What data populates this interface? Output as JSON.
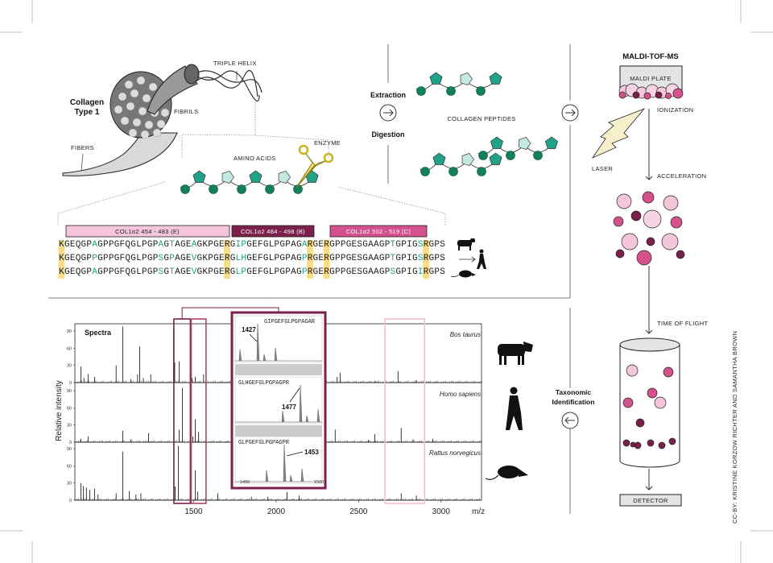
{
  "credit": "CC-BY: KRISTINE KORZOW RICHTER AND SAMANTHA BROWN",
  "colors": {
    "light_pink": "#f5c5db",
    "maroon": "#7b1f4b",
    "mid_pink": "#d3518c",
    "teal": "#1fa287",
    "light_teal": "#c4e8e2",
    "dark_green": "#12805f",
    "highlight": "#f7d35c"
  },
  "collagen": {
    "title_line1": "Collagen",
    "title_line2": "Type 1",
    "triple_helix": "TRIPLE HELIX",
    "fibrils": "FIBRILS",
    "fibers": "FIBERS",
    "amino_acids": "AMINO ACIDS",
    "enzyme": "ENZYME"
  },
  "process": {
    "extraction": "Extraction",
    "digestion": "Digestion",
    "collagen_peptides": "COLLAGEN PEPTIDES",
    "taxonomic_line1": "Taxonomic",
    "taxonomic_line2": "Identification"
  },
  "sequence": {
    "regions": [
      {
        "label": "COL1α2 454 - 483 (E)",
        "color": "#f5c5db"
      },
      {
        "label": "COL1α2 484 - 498 (B)",
        "color": "#7b1f4b"
      },
      {
        "label": "COL1α2 502 - 519 (C)",
        "color": "#d3518c"
      }
    ],
    "rows": [
      {
        "species": "cow",
        "seq": "KGEQGPAGPPGFQGLPGPAGTAGEAGKPGERGIPGEFGLPGPAGARGERGPPGESGAAGPTGPIGSRGPS"
      },
      {
        "species": "human",
        "seq": "KGEQGPPGPPGFQGLPGPSGPAGEVGKPGERGLHGEFGLPGPAGPRGERGPPGESGAAGPTGPIGSRGPS"
      },
      {
        "species": "rat",
        "seq": "KGEQGPAGPPGFQGLPGPSGTAGEVGKPGERGLPGEFGLPGPAGPRGERGPPGESGAAGPSGPIGIRGPS"
      }
    ],
    "cleavage_sites": [
      0,
      30,
      45,
      48,
      66
    ]
  },
  "maldi": {
    "title": "MALDI-TOF-MS",
    "plate": "MALDI PLATE",
    "ionization": "IONIZATION",
    "laser": "LASER",
    "acceleration": "ACCELERATION",
    "time_of_flight": "TIME OF FLIGHT",
    "detector": "DETECTOR"
  },
  "chart_data": {
    "type": "bar",
    "title": "Spectra",
    "xlabel": "m/z",
    "ylabel": "Relative intensity",
    "xlim": [
      780,
      3245
    ],
    "ylim": [
      0,
      100
    ],
    "xticks": [
      1500,
      2000,
      2500,
      3000
    ],
    "yticks": [
      0,
      30,
      60,
      90
    ],
    "series": [
      {
        "name": "Bos taurus",
        "peaks": [
          [
            817,
            28
          ],
          [
            835,
            8
          ],
          [
            860,
            15
          ],
          [
            900,
            10
          ],
          [
            1030,
            30
          ],
          [
            1070,
            98
          ],
          [
            1120,
            6
          ],
          [
            1160,
            14
          ],
          [
            1173,
            63
          ],
          [
            1195,
            8
          ],
          [
            1240,
            14
          ],
          [
            1378,
            93
          ],
          [
            1385,
            35
          ],
          [
            1412,
            37
          ],
          [
            1490,
            8
          ],
          [
            1510,
            10
          ],
          [
            1560,
            14
          ],
          [
            2370,
            10
          ],
          [
            2388,
            17
          ],
          [
            2600,
            3
          ],
          [
            2739,
            20
          ],
          [
            2850,
            4
          ],
          [
            2900,
            3
          ]
        ]
      },
      {
        "name": "Homo sapiens",
        "peaks": [
          [
            817,
            6
          ],
          [
            860,
            10
          ],
          [
            1070,
            20
          ],
          [
            1120,
            5
          ],
          [
            1227,
            16
          ],
          [
            1412,
            22
          ],
          [
            1432,
            95
          ],
          [
            1495,
            10
          ],
          [
            1510,
            40
          ],
          [
            1530,
            18
          ],
          [
            2358,
            22
          ],
          [
            2560,
            4
          ],
          [
            2598,
            14
          ],
          [
            2758,
            25
          ],
          [
            2830,
            5
          ],
          [
            2950,
            6
          ]
        ]
      },
      {
        "name": "Rattus norvegicus",
        "peaks": [
          [
            817,
            30
          ],
          [
            832,
            25
          ],
          [
            850,
            22
          ],
          [
            870,
            18
          ],
          [
            900,
            20
          ],
          [
            920,
            10
          ],
          [
            1030,
            12
          ],
          [
            1070,
            85
          ],
          [
            1110,
            16
          ],
          [
            1150,
            10
          ],
          [
            1180,
            12
          ],
          [
            1388,
            24
          ],
          [
            1407,
            95
          ],
          [
            1480,
            24
          ],
          [
            1510,
            52
          ],
          [
            1525,
            15
          ],
          [
            1646,
            12
          ],
          [
            1850,
            6
          ],
          [
            1950,
            6
          ],
          [
            2066,
            14
          ],
          [
            2140,
            8
          ],
          [
            2758,
            12
          ],
          [
            2850,
            8
          ]
        ]
      }
    ],
    "inset": {
      "xticks": [
        "1400",
        "1500"
      ],
      "panels": [
        {
          "peptide": "GIPGEFGLPGPAGAR",
          "mz": "1427"
        },
        {
          "peptide": "GLHGEFGLPGPAGPR",
          "mz": "1477"
        },
        {
          "peptide": "GLPGEFGLPGPAGPR",
          "mz": "1453"
        }
      ]
    }
  }
}
